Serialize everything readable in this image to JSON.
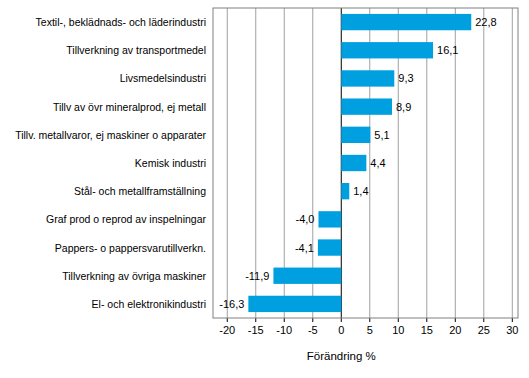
{
  "chart_data": {
    "type": "bar",
    "orientation": "horizontal",
    "x_label": "Förändring %",
    "categories": [
      "Textil-, beklädnads- och läderindustri",
      "Tillverkning av transportmedel",
      "Livsmedelsindustri",
      "Tillv av övr mineralprod, ej metall",
      "Tillv. metallvaror, ej maskiner o apparater",
      "Kemisk industri",
      "Stål- och metallframställning",
      "Graf prod o reprod av inspelningar",
      "Pappers- o pappersvarutillverkn.",
      "Tillverkning av övriga maskiner",
      "El- och elektronikindustri"
    ],
    "values": [
      22.8,
      16.1,
      9.3,
      8.9,
      5.1,
      4.4,
      1.4,
      -4.0,
      -4.1,
      -11.9,
      -16.3
    ],
    "value_labels": [
      "22,8",
      "16,1",
      "9,3",
      "8,9",
      "5,1",
      "4,4",
      "1,4",
      "-4,0",
      "-4,1",
      "-11,9",
      "-16,3"
    ],
    "color": "#009fdf",
    "xlim": [
      -22.5,
      31
    ],
    "xticks": [
      -20,
      -15,
      -10,
      -5,
      0,
      5,
      10,
      15,
      20,
      25,
      30
    ],
    "grid": true,
    "data_labels": true
  }
}
